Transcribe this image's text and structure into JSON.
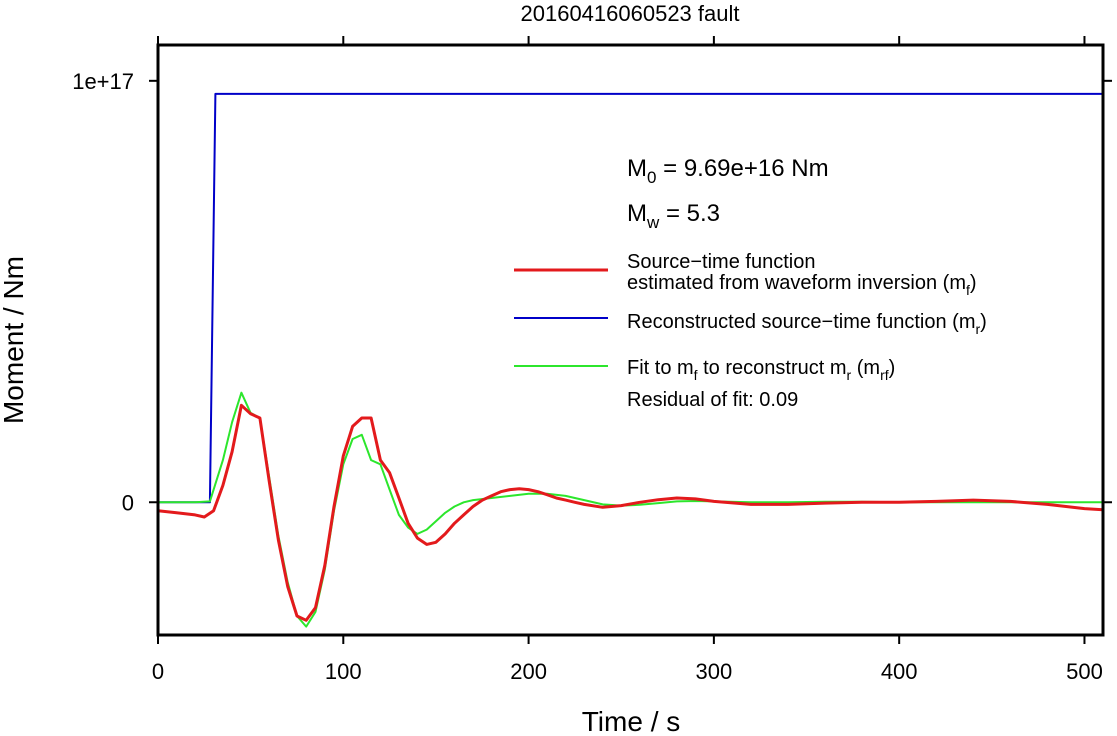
{
  "chart_data": {
    "type": "line",
    "title": "20160416060523 fault",
    "xlabel": "Time / s",
    "ylabel": "Moment / Nm",
    "xlim": [
      0,
      510
    ],
    "ylim": [
      -3.15e+16,
      1.085e+17
    ],
    "x_ticks": [
      0,
      100,
      200,
      300,
      400,
      500
    ],
    "x_tick_labels": [
      "0",
      "100",
      "200",
      "300",
      "400",
      "500"
    ],
    "y_ticks": [
      0,
      1e+17
    ],
    "y_tick_labels": [
      "0",
      "1e+17"
    ],
    "grid": false,
    "legend_position": "right, upper-middle",
    "annotations": {
      "m0_main": "M",
      "m0_sub": "0",
      "m0_rest": " = 9.69e+16 Nm",
      "mw_main": "M",
      "mw_sub": "w",
      "mw_rest": " = 5.3",
      "residual": "Residual of fit: 0.09"
    },
    "legend": [
      {
        "series": "red",
        "color": "#e31a1c",
        "text_lines": [
          [
            {
              "t": "Source−time function"
            }
          ],
          [
            {
              "t": "estimated from waveform inversion (m"
            },
            {
              "t": "f",
              "sub": true
            },
            {
              "t": ")"
            }
          ]
        ]
      },
      {
        "series": "blue",
        "color": "#0000c8",
        "text_lines": [
          [
            {
              "t": "Reconstructed source−time function (m"
            },
            {
              "t": "r",
              "sub": true
            },
            {
              "t": ")"
            }
          ]
        ]
      },
      {
        "series": "green",
        "color": "#2ce62c",
        "text_lines": [
          [
            {
              "t": "Fit to m"
            },
            {
              "t": "f",
              "sub": true
            },
            {
              "t": " to reconstruct m"
            },
            {
              "t": "r",
              "sub": true
            },
            {
              "t": " (m"
            },
            {
              "t": "rf",
              "sub": true
            },
            {
              "t": ")"
            }
          ]
        ]
      }
    ],
    "series": [
      {
        "key": "blue",
        "color": "#0000c8",
        "stroke_width": 2,
        "x": [
          0,
          28,
          31,
          34,
          510
        ],
        "y": [
          0,
          0,
          9.69e+16,
          9.69e+16,
          9.69e+16
        ]
      },
      {
        "key": "green",
        "color": "#2ce62c",
        "stroke_width": 2,
        "x": [
          0,
          10,
          20,
          28,
          35,
          40,
          45,
          50,
          55,
          60,
          65,
          70,
          75,
          80,
          85,
          90,
          95,
          100,
          105,
          110,
          115,
          120,
          125,
          130,
          135,
          140,
          145,
          150,
          155,
          160,
          165,
          170,
          180,
          190,
          200,
          210,
          220,
          230,
          240,
          250,
          260,
          270,
          280,
          290,
          300,
          320,
          340,
          360,
          380,
          400,
          420,
          440,
          460,
          480,
          510
        ],
        "y": [
          0,
          0,
          0,
          200000000000000.0,
          1e+16,
          1.9e+16,
          2.6e+16,
          2.12e+16,
          2e+16,
          6000000000000000.0,
          -8000000000000000.0,
          -1.9e+16,
          -2.7e+16,
          -2.95e+16,
          -2.6e+16,
          -1.6e+16,
          -2000000000000000.0,
          9000000000000000.0,
          1.5e+16,
          1.6e+16,
          1e+16,
          9000000000000000.0,
          3000000000000000.0,
          -3000000000000000.0,
          -6000000000000000.0,
          -7500000000000000.0,
          -6500000000000000.0,
          -4500000000000000.0,
          -2500000000000000.0,
          -1000000000000000.0,
          0.0,
          500000000000000.0,
          1000000000000000.0,
          1500000000000000.0,
          2000000000000000.0,
          2000000000000000.0,
          1500000000000000.0,
          500000000000000.0,
          -500000000000000.0,
          -800000000000000.0,
          -600000000000000.0,
          -200000000000000.0,
          200000000000000.0,
          300000000000000.0,
          200000000000000.0,
          0.0,
          0.0,
          100000000000000.0,
          100000000000000.0,
          0.0,
          0.0,
          0.0,
          0.0,
          0.0,
          0.0
        ]
      },
      {
        "key": "red",
        "color": "#e31a1c",
        "stroke_width": 3,
        "x": [
          0,
          10,
          20,
          25,
          30,
          35,
          40,
          45,
          50,
          55,
          60,
          65,
          70,
          75,
          80,
          85,
          90,
          95,
          100,
          105,
          110,
          115,
          120,
          125,
          130,
          135,
          140,
          145,
          150,
          155,
          160,
          165,
          170,
          175,
          180,
          185,
          190,
          195,
          200,
          205,
          210,
          215,
          220,
          225,
          230,
          240,
          250,
          260,
          270,
          280,
          290,
          300,
          320,
          340,
          360,
          380,
          400,
          420,
          440,
          460,
          480,
          500,
          510
        ],
        "y": [
          -2000000000000000.0,
          -2500000000000000.0,
          -3000000000000000.0,
          -3500000000000000.0,
          -2000000000000000.0,
          4000000000000000.0,
          1.2e+16,
          2.3e+16,
          2.1e+16,
          2e+16,
          5000000000000000.0,
          -9000000000000000.0,
          -2e+16,
          -2.7e+16,
          -2.8e+16,
          -2.5e+16,
          -1.5e+16,
          -1000000000000000.0,
          1.1e+16,
          1.8e+16,
          2e+16,
          2e+16,
          1e+16,
          7000000000000000.0,
          1000000000000000.0,
          -5000000000000000.0,
          -8500000000000000.0,
          -1e+16,
          -9500000000000000.0,
          -7500000000000000.0,
          -5000000000000000.0,
          -3000000000000000.0,
          -1000000000000000.0,
          500000000000000.0,
          1500000000000000.0,
          2500000000000000.0,
          3000000000000000.0,
          3200000000000000.0,
          3000000000000000.0,
          2500000000000000.0,
          1800000000000000.0,
          1000000000000000.0,
          500000000000000.0,
          0.0,
          -500000000000000.0,
          -1200000000000000.0,
          -800000000000000.0,
          0.0,
          600000000000000.0,
          1000000000000000.0,
          800000000000000.0,
          200000000000000.0,
          -500000000000000.0,
          -500000000000000.0,
          -200000000000000.0,
          0.0,
          0.0,
          200000000000000.0,
          500000000000000.0,
          200000000000000.0,
          -500000000000000.0,
          -1500000000000000.0,
          -1800000000000000.0
        ]
      }
    ]
  }
}
